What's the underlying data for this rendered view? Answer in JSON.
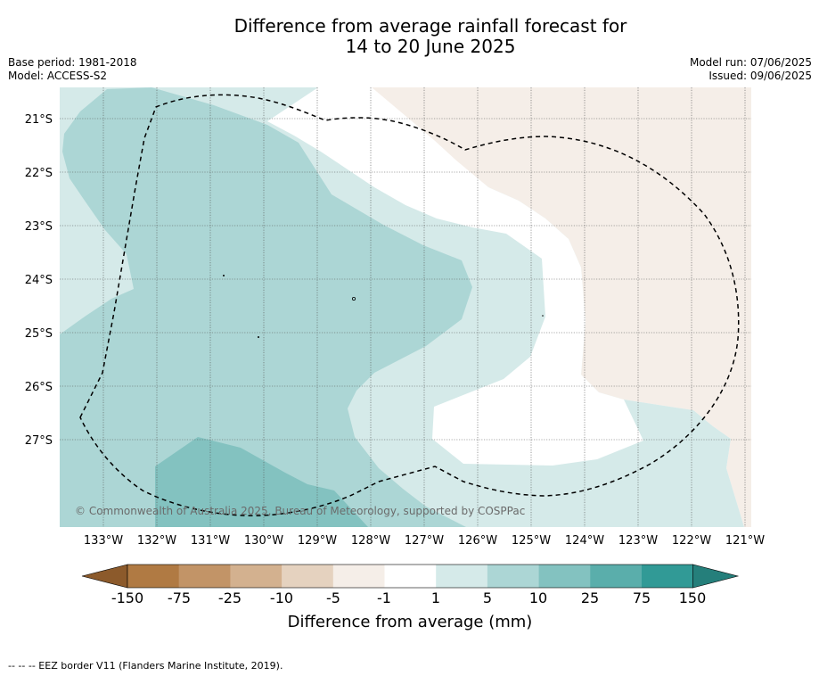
{
  "title_line1": "Difference from average rainfall forecast for",
  "title_line2": "14 to 20 June 2025",
  "base_period": "Base period: 1981-2018",
  "model": "Model: ACCESS-S2",
  "model_run": "Model run: 07/06/2025",
  "issued": "Issued: 09/06/2025",
  "lat_labels": [
    "21°S",
    "22°S",
    "23°S",
    "24°S",
    "25°S",
    "26°S",
    "27°S"
  ],
  "lon_labels": [
    "133°W",
    "132°W",
    "131°W",
    "130°W",
    "129°W",
    "128°W",
    "127°W",
    "126°W",
    "125°W",
    "124°W",
    "123°W",
    "122°W",
    "121°W"
  ],
  "copyright": "© Commonwealth of Australia 2025, Bureau of Meteorology, supported by COSPPac",
  "colorbar": {
    "ticks": [
      "-150",
      "-75",
      "-25",
      "-10",
      "-5",
      "-1",
      "1",
      "5",
      "10",
      "25",
      "75",
      "150"
    ],
    "title": "Difference from average (mm)",
    "colors": [
      "#8c5a2b",
      "#b07a43",
      "#c29467",
      "#d3b18f",
      "#e5d2bf",
      "#f5eee8",
      "#ffffff",
      "#d5eae9",
      "#acd6d5",
      "#83c2c0",
      "#5aaeab",
      "#319a96",
      "#257f7b"
    ]
  },
  "footnote": "--  --  -- EEZ border V11 (Flanders Marine Institute, 2019)."
}
